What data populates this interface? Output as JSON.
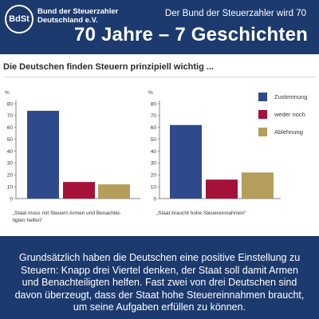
{
  "header": {
    "logo_text": "BdSt",
    "org_line1": "Bund der Steuerzahler",
    "org_line2": "Deutschland e.V.",
    "subtitle": "Der Bund der Steuerzahler wird 70",
    "headline": "70 Jahre – 7 Geschichten"
  },
  "chart_data": [
    {
      "type": "bar",
      "title": "Die Deutschen finden Steuern prinzipiell wichtig ...",
      "ylabel": "%",
      "ylim": [
        0,
        80
      ],
      "yticks": [
        "0",
        "10",
        "20",
        "30",
        "40",
        "50",
        "60",
        "70",
        "80"
      ],
      "categories": [
        "Zustimmung",
        "weder noch",
        "Ablehnung"
      ],
      "values": [
        74,
        14,
        12
      ],
      "caption_line1": "„Staat muss mit Steuern Armen und Benachtei-",
      "caption_line2": "ligten helfen“"
    },
    {
      "type": "bar",
      "ylabel": "%",
      "ylim": [
        0,
        80
      ],
      "yticks": [
        "0",
        "10",
        "20",
        "30",
        "40",
        "50",
        "60",
        "70",
        "80"
      ],
      "categories": [
        "Zustimmung",
        "weder noch",
        "Ablehnung"
      ],
      "values": [
        62,
        16,
        22
      ],
      "caption_line1": "„Staat braucht hohe Steuereinnahmen“",
      "caption_line2": ""
    }
  ],
  "legend": {
    "placement": "right",
    "items": [
      {
        "label": "Zustimmung",
        "color": "#2e4a8c"
      },
      {
        "label": "weder noch",
        "color": "#a4123a"
      },
      {
        "label": "Ablehnung",
        "color": "#b59d5c"
      }
    ]
  },
  "footer": {
    "text": "Grundsätzlich haben die Deutschen eine positive Einstellung zu Steuern: Knapp drei Viertel denken, der Staat soll damit Armen und Benachteiligten helfen. Fast zwei von drei Deutschen sind davon überzeugt, dass der Staat hohe Steuereinnahmen braucht, um seine Aufgaben erfüllen zu können."
  }
}
